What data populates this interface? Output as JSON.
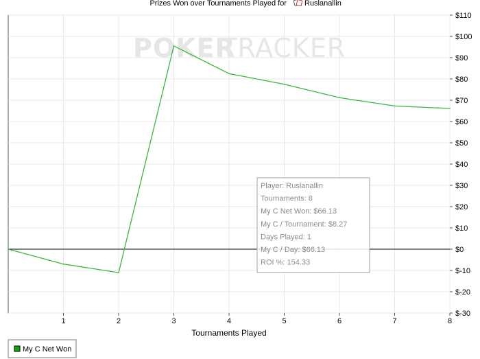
{
  "chart_data": {
    "type": "line",
    "title_prefix": "Prizes Won over Tournaments Played for",
    "title_player": "Ruslanallin",
    "title_icon": "poker-cards-icon",
    "watermark_left": "POKER",
    "watermark_right": "TRACKER",
    "xlabel": "Tournaments Played",
    "ylabel": "",
    "x_ticks": [
      "1",
      "2",
      "3",
      "4",
      "5",
      "6",
      "7",
      "8"
    ],
    "y_ticks": [
      "$110",
      "$100",
      "$90",
      "$80",
      "$70",
      "$60",
      "$50",
      "$40",
      "$30",
      "$20",
      "$10",
      "$0",
      "$-10",
      "$-20",
      "$-30"
    ],
    "xlim": [
      0,
      8
    ],
    "ylim": [
      -30,
      110
    ],
    "grid": true,
    "series": [
      {
        "name": "My C Net Won",
        "color": "#3cb53c",
        "x": [
          0,
          1,
          2,
          3,
          4,
          5,
          6,
          7,
          8
        ],
        "values": [
          0,
          -7,
          -11,
          95.5,
          82.5,
          77.5,
          71.2,
          67.3,
          66.13
        ]
      }
    ],
    "legend_position": "bottom-left",
    "tooltip": {
      "lines": [
        "Player: Ruslanallin",
        "Tournaments: 8",
        "My C Net Won: $66.13",
        "My C / Tournament: $8.27",
        "Days Played: 1",
        "My C / Day: $66.13",
        "ROI %: 154.33"
      ]
    }
  }
}
